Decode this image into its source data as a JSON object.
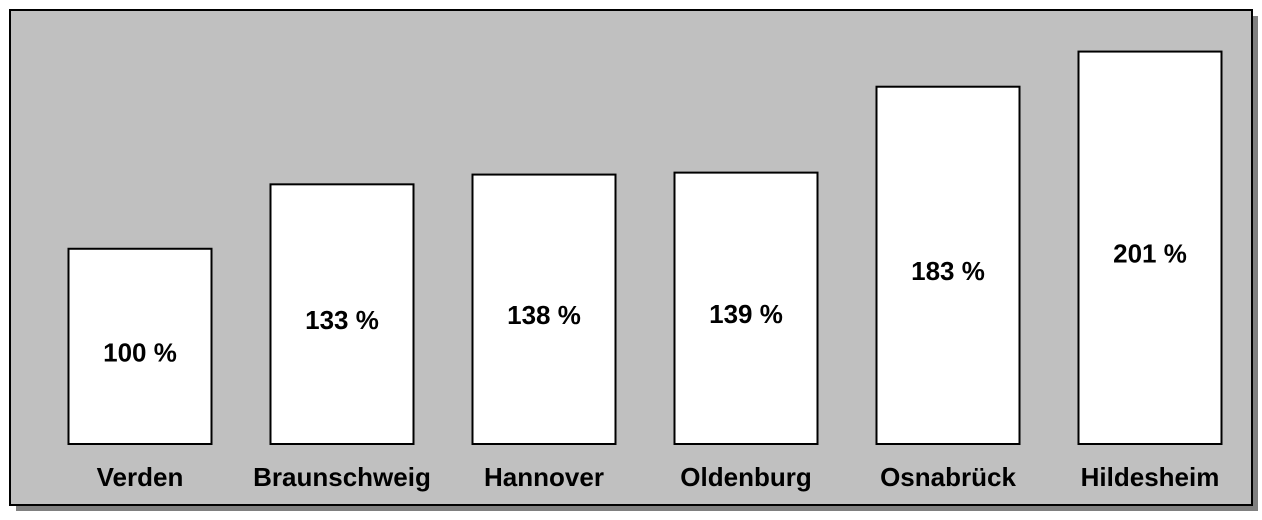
{
  "chart_data": {
    "type": "bar",
    "categories": [
      "Verden",
      "Braunschweig",
      "Hannover",
      "Oldenburg",
      "Osnabrück",
      "Hildesheim"
    ],
    "values": [
      100,
      133,
      138,
      139,
      183,
      201
    ],
    "value_labels": [
      "100 %",
      "133 %",
      "138 %",
      "139 %",
      "183 %",
      "201 %"
    ],
    "color": "#ffffff",
    "ylim": [
      0,
      210
    ]
  }
}
